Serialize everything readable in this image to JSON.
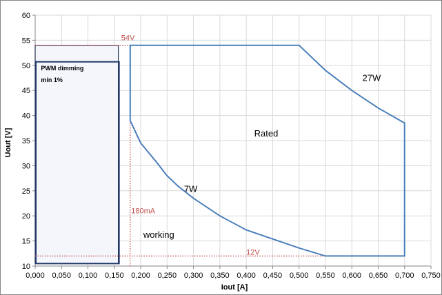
{
  "chart_data": {
    "type": "line",
    "xlabel": "Iout [A]",
    "ylabel": "Uout [V]",
    "xlim": [
      0,
      0.75
    ],
    "ylim": [
      10,
      60
    ],
    "x_ticks": [
      "0,000",
      "0,050",
      "0,100",
      "0,150",
      "0,200",
      "0,250",
      "0,300",
      "0,350",
      "0,400",
      "0,450",
      "0,500",
      "0,550",
      "0,600",
      "0,650",
      "0,700",
      "0,750"
    ],
    "y_ticks": [
      "10",
      "15",
      "20",
      "25",
      "30",
      "35",
      "40",
      "45",
      "50",
      "55",
      "60"
    ],
    "grid": true,
    "series": [
      {
        "color": "#4a7ebb",
        "points": [
          [
            0.18,
            39
          ],
          [
            0.18,
            54
          ],
          [
            0.5,
            54
          ],
          [
            0.55,
            49
          ],
          [
            0.6,
            45
          ],
          [
            0.65,
            41.5
          ],
          [
            0.7,
            38.5
          ],
          [
            0.7,
            12
          ],
          [
            0.55,
            12
          ],
          [
            0.5,
            13.6
          ],
          [
            0.45,
            15.4
          ],
          [
            0.4,
            17.2
          ],
          [
            0.35,
            20
          ],
          [
            0.3,
            23.5
          ],
          [
            0.27,
            26
          ],
          [
            0.25,
            28
          ],
          [
            0.23,
            30.7
          ],
          [
            0.2,
            34.5
          ],
          [
            0.18,
            39
          ]
        ]
      }
    ],
    "pwm_box": {
      "x": [
        0.0,
        0.155
      ],
      "y": [
        10.5,
        50.7
      ],
      "outer_top": 54
    },
    "reference_lines": [
      {
        "orientation": "horizontal",
        "value": 54,
        "x_to": 0.18,
        "color": "#c0504d"
      },
      {
        "orientation": "horizontal",
        "value": 12,
        "x_to": 0.7,
        "color": "#c0504d"
      },
      {
        "orientation": "vertical",
        "value": 0.18,
        "y_to": 54,
        "color": "#c0504d"
      }
    ],
    "annotations": [
      {
        "text": "54V",
        "x": 0.163,
        "y": 55,
        "color": "#c0504d"
      },
      {
        "text": "12V",
        "x": 0.4,
        "y": 12.3,
        "color": "#c0504d"
      },
      {
        "text": "180mA",
        "x": 0.182,
        "y": 20.5,
        "color": "#c0504d"
      },
      {
        "text": "PWM dimming",
        "x": 0.011,
        "y": 49,
        "color": "#000000"
      },
      {
        "text": "min 1%",
        "x": 0.011,
        "y": 46.7,
        "color": "#000000"
      },
      {
        "text": "27W",
        "x": 0.62,
        "y": 46.9,
        "color": "#000000"
      },
      {
        "text": "Rated",
        "x": 0.415,
        "y": 35.8,
        "color": "#000000"
      },
      {
        "text": "7W",
        "x": 0.282,
        "y": 24.8,
        "color": "#000000"
      },
      {
        "text": "working",
        "x": 0.205,
        "y": 15.6,
        "color": "#000000"
      }
    ]
  }
}
